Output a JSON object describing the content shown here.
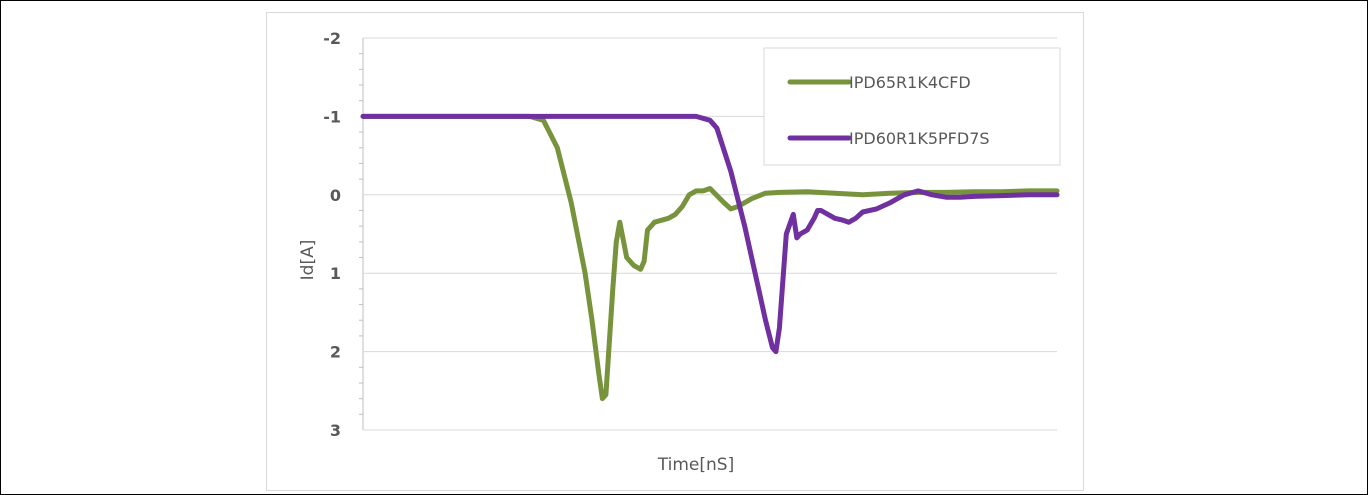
{
  "chart_data": {
    "type": "line",
    "title": "",
    "xlabel": "Time[nS]",
    "ylabel": "Id[A]",
    "ylim": [
      3,
      -2
    ],
    "y_axis_reversed": true,
    "y_ticks": [
      "-2",
      "-1",
      "0",
      "1",
      "2",
      "3"
    ],
    "x_tick_labels_shown": false,
    "grid": "horizontal",
    "legend_position": "top-right",
    "x_unit_note": "x values are relative time positions (axis unlabeled)",
    "series": [
      {
        "name": "IPD65R1K4CFD",
        "color": "#77933c",
        "x": [
          0,
          10,
          20,
          24,
          26,
          28,
          30,
          32,
          33,
          34,
          34.5,
          35,
          36,
          36.5,
          37,
          38,
          39,
          40,
          40.5,
          41,
          42,
          44,
          45,
          46,
          47,
          48,
          49,
          50,
          52,
          53,
          54,
          56,
          58,
          60,
          64,
          68,
          72,
          76,
          80,
          84,
          88,
          92,
          96,
          100
        ],
        "y": [
          -1,
          -1,
          -1,
          -1,
          -0.95,
          -0.6,
          0.1,
          1.0,
          1.6,
          2.3,
          2.6,
          2.55,
          1.2,
          0.6,
          0.35,
          0.8,
          0.9,
          0.95,
          0.85,
          0.45,
          0.35,
          0.3,
          0.25,
          0.15,
          0.0,
          -0.05,
          -0.05,
          -0.08,
          0.1,
          0.18,
          0.15,
          0.05,
          -0.02,
          -0.03,
          -0.04,
          -0.02,
          0.0,
          -0.02,
          -0.03,
          -0.03,
          -0.04,
          -0.04,
          -0.05,
          -0.05
        ]
      },
      {
        "name": "IPD60R1K5PFD7S",
        "color": "#7030a0",
        "x": [
          0,
          10,
          20,
          30,
          40,
          48,
          50,
          51,
          53,
          55,
          57,
          58,
          59,
          59.5,
          60,
          61,
          62,
          62.5,
          63,
          64,
          65,
          65.5,
          66,
          67,
          68,
          69,
          70,
          71,
          72,
          74,
          76,
          78,
          80,
          82,
          84,
          86,
          88,
          92,
          96,
          100
        ],
        "y": [
          -1,
          -1,
          -1,
          -1,
          -1,
          -1,
          -0.95,
          -0.85,
          -0.3,
          0.4,
          1.2,
          1.6,
          1.95,
          2.0,
          1.7,
          0.5,
          0.25,
          0.55,
          0.5,
          0.45,
          0.3,
          0.2,
          0.2,
          0.25,
          0.3,
          0.32,
          0.35,
          0.3,
          0.22,
          0.18,
          0.1,
          0.0,
          -0.05,
          0.0,
          0.03,
          0.03,
          0.02,
          0.01,
          0.0,
          0.0
        ]
      }
    ]
  }
}
